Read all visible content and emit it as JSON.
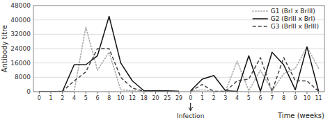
{
  "chart_data": {
    "type": "line",
    "ylabel": "Antibody titre",
    "xlabel": "Time (weeks)",
    "annotations": [
      {
        "text": "Infection"
      }
    ],
    "categories": [
      "0",
      "1",
      "2",
      "4",
      "5",
      "6",
      "8",
      "10",
      "12",
      "18",
      "20",
      "25",
      "29",
      "0",
      "1",
      "2",
      "3",
      "4",
      "5",
      "6",
      "7",
      "8",
      "9",
      "10",
      "11"
    ],
    "series": [
      {
        "name": "G1 (BrI x BrIII)",
        "color": "#aaaaaa",
        "line_style": "dotted",
        "values": [
          0,
          0,
          200,
          200,
          36000,
          12000,
          22000,
          1000,
          500,
          200,
          200,
          500,
          200,
          null,
          null,
          null,
          null,
          null,
          null,
          null,
          null,
          null,
          null,
          null,
          null
        ]
      },
      {
        "color": "#aaaaaa",
        "line_style": "dotted",
        "values": [
          null,
          null,
          null,
          null,
          null,
          null,
          null,
          null,
          null,
          null,
          null,
          null,
          null,
          200,
          1000,
          200,
          200,
          17000,
          500,
          12000,
          500,
          10000,
          13000,
          25000,
          13000
        ]
      },
      {
        "name": "G2 (BrIII x BrI)",
        "color": "#111111",
        "line_style": "solid",
        "values": [
          0,
          0,
          200,
          15000,
          15000,
          20000,
          42000,
          16000,
          6000,
          500,
          500,
          500,
          200,
          null,
          null,
          null,
          null,
          null,
          null,
          null,
          null,
          null,
          null,
          null,
          null
        ]
      },
      {
        "color": "#111111",
        "line_style": "solid",
        "values": [
          null,
          null,
          null,
          null,
          null,
          null,
          null,
          null,
          null,
          null,
          null,
          null,
          null,
          500,
          7000,
          9000,
          500,
          200,
          20000,
          200,
          22000,
          15000,
          1000,
          25000,
          200
        ]
      },
      {
        "name": "G3 (BrIII x BrIII)",
        "color": "#444444",
        "line_style": "dashed",
        "values": [
          0,
          0,
          200,
          6000,
          11000,
          24000,
          24000,
          8000,
          2000,
          200,
          200,
          200,
          200,
          null,
          null,
          null,
          null,
          null,
          null,
          null,
          null,
          null,
          null,
          null,
          null
        ]
      },
      {
        "color": "#444444",
        "line_style": "dashed",
        "values": [
          null,
          null,
          null,
          null,
          null,
          null,
          null,
          null,
          null,
          null,
          null,
          null,
          null,
          200,
          4000,
          200,
          200,
          6000,
          7000,
          19000,
          200,
          19000,
          6000,
          6000,
          200
        ]
      }
    ],
    "ylim": [
      0,
      48000
    ],
    "yticks": [
      0,
      8000,
      16000,
      24000,
      32000,
      40000,
      48000
    ],
    "grid": true,
    "legend": "upper right"
  }
}
